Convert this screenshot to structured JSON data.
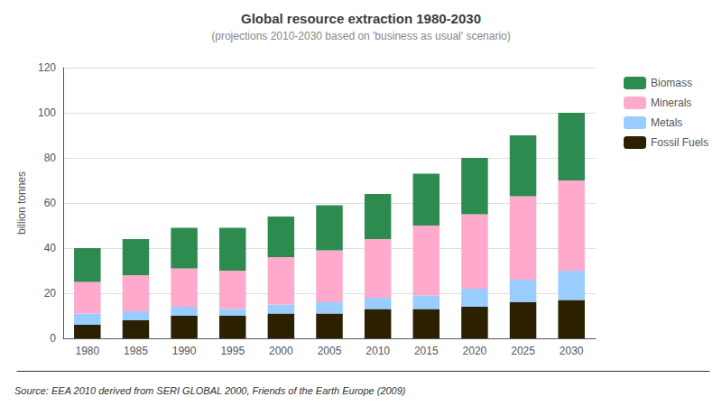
{
  "chart_data": {
    "type": "bar",
    "title": "Global resource extraction 1980-2030",
    "subtitle": "(projections 2010-2030 based on 'business as usual' scenario)",
    "source": "Source: EEA 2010 derived from SERI GLOBAL 2000, Friends of the Earth Europe (2009)",
    "y_label": "billion tonnes",
    "categories": [
      "1980",
      "1985",
      "1990",
      "1995",
      "2000",
      "2005",
      "2010",
      "2015",
      "2020",
      "2025",
      "2030"
    ],
    "series": [
      {
        "name": "Fossil Fuels",
        "color": "#2b2000",
        "values": [
          6,
          8,
          10,
          10,
          11,
          11,
          13,
          13,
          14,
          16,
          17
        ]
      },
      {
        "name": "Metals",
        "color": "#99ccff",
        "values": [
          5,
          4,
          4,
          3,
          4,
          5,
          5,
          6,
          8,
          10,
          13
        ]
      },
      {
        "name": "Minerals",
        "color": "#ffaacc",
        "values": [
          14,
          16,
          17,
          17,
          21,
          23,
          26,
          31,
          33,
          37,
          40
        ]
      },
      {
        "name": "Biomass",
        "color": "#2e8b50",
        "values": [
          15,
          16,
          18,
          19,
          18,
          20,
          20,
          23,
          25,
          27,
          30
        ]
      }
    ],
    "stacked": true,
    "ylim": [
      0,
      120
    ],
    "yticks": [
      0,
      20,
      40,
      60,
      80,
      100,
      120
    ],
    "grid": true,
    "legend": "upper right"
  }
}
